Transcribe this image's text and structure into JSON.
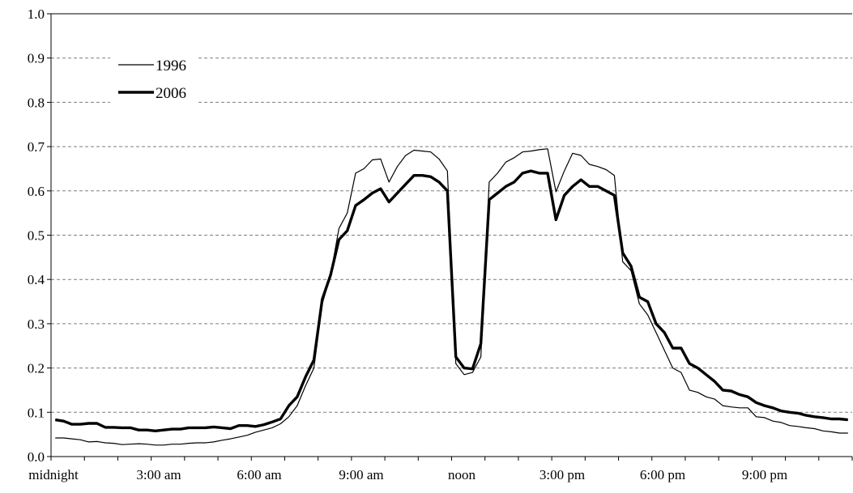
{
  "chart_data": {
    "type": "line",
    "title": "",
    "xlabel": "",
    "ylabel": "",
    "ylim": [
      0,
      1.0
    ],
    "yticks": [
      "0.0",
      "0.1",
      "0.2",
      "0.3",
      "0.4",
      "0.5",
      "0.6",
      "0.7",
      "0.8",
      "0.9",
      "1.0"
    ],
    "xticks": [
      "midnight",
      "3:00 am",
      "6:00 am",
      "9:00 am",
      "noon",
      "3:00 pm",
      "6:00 pm",
      "9:00 pm"
    ],
    "x_interval": "15 min",
    "grid": true,
    "legend_position": "top-left",
    "series": [
      {
        "name": "1996",
        "style": "thin",
        "color": "#000000",
        "values": [
          0.042,
          0.042,
          0.04,
          0.038,
          0.033,
          0.034,
          0.031,
          0.03,
          0.027,
          0.028,
          0.029,
          0.028,
          0.026,
          0.026,
          0.028,
          0.028,
          0.03,
          0.031,
          0.031,
          0.033,
          0.037,
          0.04,
          0.044,
          0.048,
          0.055,
          0.06,
          0.065,
          0.074,
          0.09,
          0.115,
          0.16,
          0.2,
          0.345,
          0.41,
          0.515,
          0.55,
          0.64,
          0.65,
          0.67,
          0.672,
          0.62,
          0.655,
          0.68,
          0.692,
          0.69,
          0.688,
          0.672,
          0.645,
          0.21,
          0.185,
          0.19,
          0.225,
          0.62,
          0.64,
          0.665,
          0.675,
          0.688,
          0.69,
          0.693,
          0.695,
          0.598,
          0.645,
          0.685,
          0.68,
          0.66,
          0.655,
          0.648,
          0.635,
          0.44,
          0.42,
          0.345,
          0.32,
          0.28,
          0.24,
          0.2,
          0.19,
          0.15,
          0.145,
          0.135,
          0.13,
          0.115,
          0.112,
          0.11,
          0.11,
          0.09,
          0.088,
          0.08,
          0.077,
          0.07,
          0.068,
          0.065,
          0.063,
          0.058,
          0.056,
          0.053,
          0.053
        ]
      },
      {
        "name": "2006",
        "style": "thick",
        "color": "#000000",
        "values": [
          0.083,
          0.08,
          0.073,
          0.073,
          0.075,
          0.075,
          0.066,
          0.066,
          0.065,
          0.065,
          0.06,
          0.06,
          0.058,
          0.06,
          0.062,
          0.062,
          0.065,
          0.065,
          0.065,
          0.067,
          0.065,
          0.063,
          0.07,
          0.07,
          0.068,
          0.072,
          0.078,
          0.085,
          0.115,
          0.135,
          0.18,
          0.218,
          0.355,
          0.41,
          0.49,
          0.51,
          0.567,
          0.58,
          0.595,
          0.605,
          0.575,
          0.595,
          0.615,
          0.635,
          0.635,
          0.632,
          0.62,
          0.6,
          0.225,
          0.2,
          0.198,
          0.255,
          0.58,
          0.595,
          0.61,
          0.62,
          0.64,
          0.645,
          0.64,
          0.64,
          0.535,
          0.59,
          0.61,
          0.625,
          0.61,
          0.61,
          0.6,
          0.59,
          0.46,
          0.43,
          0.36,
          0.35,
          0.3,
          0.28,
          0.245,
          0.245,
          0.21,
          0.2,
          0.185,
          0.17,
          0.15,
          0.148,
          0.14,
          0.135,
          0.122,
          0.115,
          0.11,
          0.103,
          0.1,
          0.098,
          0.093,
          0.09,
          0.088,
          0.085,
          0.085,
          0.083
        ]
      }
    ]
  }
}
